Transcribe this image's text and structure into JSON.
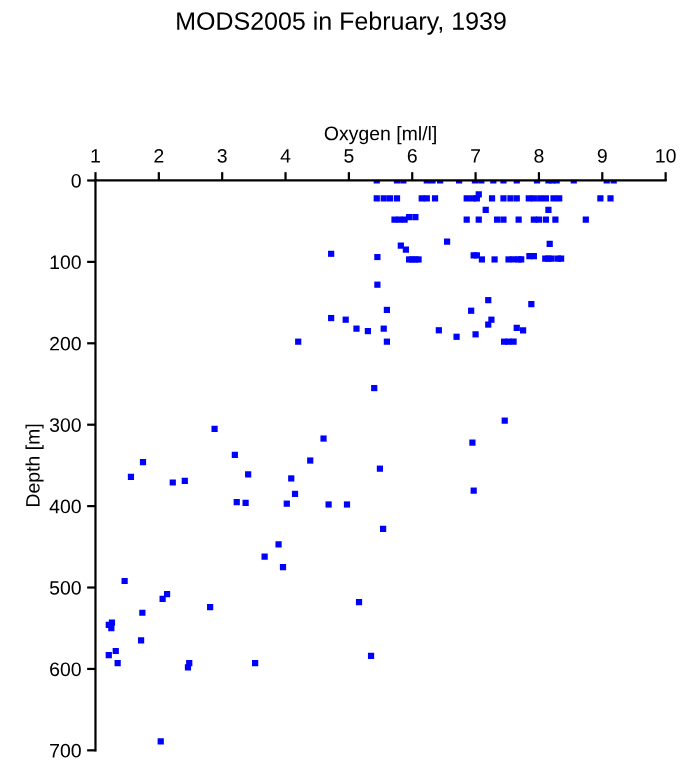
{
  "chart_data": {
    "type": "scatter",
    "title": "MODS2005 in February, 1939",
    "xlabel": "Oxygen [ml/l]",
    "ylabel": "Depth [m]",
    "xlim": [
      1,
      10
    ],
    "xticks": [
      1,
      2,
      3,
      4,
      5,
      6,
      7,
      8,
      9,
      10
    ],
    "ylim": [
      700,
      0
    ],
    "yticks": [
      0,
      100,
      200,
      300,
      400,
      500,
      600,
      700
    ],
    "grid": false,
    "legend": false,
    "marker": "square",
    "series": [
      {
        "color": "#0000ff",
        "x": [
          5.44,
          5.76,
          5.86,
          6.23,
          6.32,
          6.44,
          6.74,
          6.99,
          7.09,
          7.28,
          7.44,
          7.65,
          7.97,
          8.15,
          8.21,
          8.28,
          8.55,
          9.07,
          9.18,
          5.44,
          5.55,
          5.65,
          5.76,
          6.15,
          6.23,
          6.36,
          6.86,
          6.95,
          7.02,
          7.26,
          7.44,
          7.55,
          7.65,
          7.84,
          7.92,
          8.02,
          8.11,
          8.23,
          8.32,
          8.97,
          9.13,
          7.05,
          7.16,
          8.15,
          6.86,
          7.05,
          7.34,
          7.44,
          7.68,
          7.92,
          8.0,
          8.11,
          8.26,
          8.74,
          5.72,
          5.8,
          5.88,
          5.95,
          6.05,
          5.82,
          5.9,
          6.55,
          8.17,
          4.72,
          5.45,
          5.95,
          6.0,
          6.05,
          6.1,
          6.97,
          7.02,
          7.1,
          7.3,
          7.52,
          7.6,
          7.68,
          7.72,
          7.85,
          7.92,
          8.1,
          8.15,
          8.2,
          8.3,
          8.35,
          5.45,
          7.2,
          7.88,
          5.6,
          6.93,
          4.72,
          4.95,
          7.25,
          7.2,
          5.12,
          5.3,
          5.55,
          6.42,
          6.7,
          7.0,
          7.65,
          7.75,
          4.2,
          5.6,
          7.45,
          7.52,
          7.6,
          5.4,
          7.46,
          2.88,
          6.95,
          4.6,
          3.2,
          1.75,
          4.39,
          5.49,
          1.56,
          3.41,
          2.22,
          2.41,
          4.09,
          4.15,
          6.97,
          3.23,
          3.37,
          4.02,
          4.68,
          4.97,
          5.54,
          3.89,
          3.67,
          3.96,
          1.46,
          2.13,
          2.06,
          5.16,
          2.81,
          1.74,
          1.26,
          1.21,
          1.25,
          1.72,
          1.32,
          1.21,
          5.35,
          1.35,
          2.48,
          2.46,
          3.52,
          2.03
        ],
        "values": [
          0,
          0,
          0,
          0,
          0,
          0,
          0,
          0,
          0,
          0,
          0,
          0,
          0,
          0,
          0,
          0,
          0,
          0,
          0,
          22,
          22,
          22,
          22,
          22,
          22,
          22,
          22,
          22,
          22,
          22,
          22,
          22,
          22,
          22,
          22,
          22,
          22,
          22,
          22,
          22,
          22,
          17,
          36,
          36,
          48,
          48,
          48,
          48,
          48,
          48,
          48,
          48,
          48,
          48,
          48,
          48,
          48,
          45,
          45,
          80,
          85,
          75,
          78,
          90,
          94,
          97,
          97,
          97,
          97,
          92,
          92,
          97,
          97,
          97,
          97,
          97,
          97,
          93,
          93,
          96,
          96,
          96,
          96,
          96,
          128,
          147,
          152,
          159,
          160,
          169,
          171,
          171,
          177,
          182,
          185,
          182,
          184,
          192,
          189,
          181,
          184,
          198,
          198,
          198,
          198,
          198,
          255,
          295,
          305,
          322,
          317,
          337,
          346,
          344,
          354,
          364,
          361,
          371,
          369,
          366,
          385,
          381,
          395,
          396,
          397,
          398,
          398,
          428,
          447,
          462,
          475,
          492,
          508,
          514,
          518,
          524,
          531,
          543,
          546,
          550,
          565,
          578,
          583,
          584,
          593,
          593,
          598,
          593,
          689
        ]
      }
    ]
  }
}
